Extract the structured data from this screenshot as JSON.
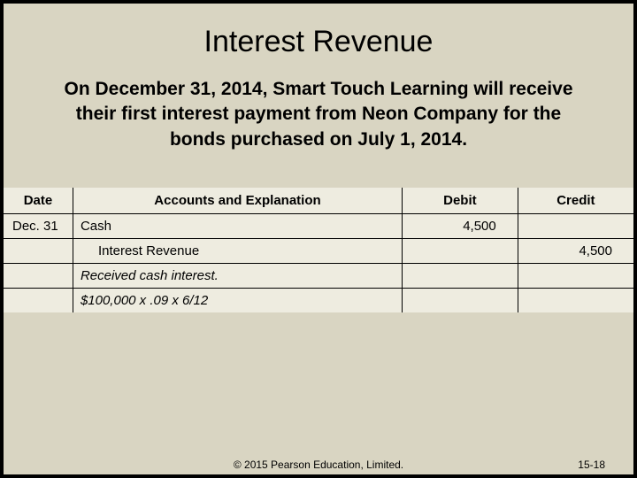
{
  "slide": {
    "title": "Interest Revenue",
    "description": "On December 31, 2014, Smart Touch Learning will receive their first interest payment from Neon Company for the bonds purchased on July 1, 2014.",
    "background_color": "#d9d5c2",
    "table_background_color": "#eeece0"
  },
  "table": {
    "headers": {
      "date": "Date",
      "accounts": "Accounts and Explanation",
      "debit": "Debit",
      "credit": "Credit"
    },
    "rows": {
      "r1": {
        "date": "Dec. 31",
        "account": "Cash",
        "debit": "4,500",
        "credit": ""
      },
      "r2": {
        "date": "",
        "account": "Interest Revenue",
        "debit": "",
        "credit": "4,500"
      },
      "r3": {
        "date": "",
        "account": "Received cash interest.",
        "debit": "",
        "credit": ""
      },
      "r4": {
        "date": "",
        "account": "$100,000 x .09 x 6/12",
        "debit": "",
        "credit": ""
      }
    }
  },
  "footer": {
    "copyright": "© 2015 Pearson Education, Limited.",
    "page": "15-18"
  }
}
